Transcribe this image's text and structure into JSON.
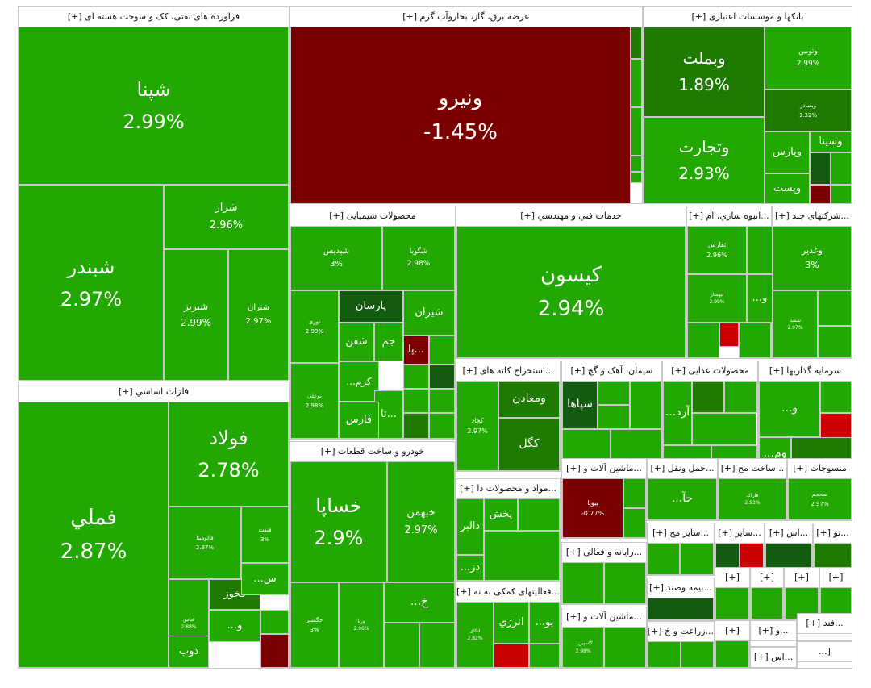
{
  "chart_data": {
    "type": "treemap",
    "title": "",
    "colors": {
      "up": "#22a800",
      "up_dark": "#1e7a00",
      "up_darker": "#135b10",
      "down": "#7a0000",
      "down_bright": "#cc0000",
      "up_light": "#2bb000"
    },
    "sectors": [
      {
        "name": "فراورده های نفتی، کک و سوخت هسته ای [+]",
        "symbols": [
          {
            "name": "شپنا",
            "change": "2.99%"
          },
          {
            "name": "شبندر",
            "change": "2.97%"
          },
          {
            "name": "شراز",
            "change": "2.96%"
          },
          {
            "name": "شبریز",
            "change": "2.99%"
          },
          {
            "name": "شتران",
            "change": "2.97%"
          }
        ]
      },
      {
        "name": "عرضه برق، گاز، بخاروآب گرم [+]",
        "symbols": [
          {
            "name": "ونیرو",
            "change": "-1.45%"
          }
        ]
      },
      {
        "name": "بانکها و موسسات اعتباری [+]",
        "symbols": [
          {
            "name": "وبملت",
            "change": "1.89%"
          },
          {
            "name": "وتوبین",
            "change": "2.99%"
          },
          {
            "name": "وبصادر",
            "change": "1.32%"
          },
          {
            "name": "وتجارت",
            "change": "2.93%"
          },
          {
            "name": "وسینا",
            "change": ""
          },
          {
            "name": "وپارس",
            "change": ""
          },
          {
            "name": "وپست",
            "change": ""
          }
        ]
      },
      {
        "name": "محصولات شیمیایی [+]",
        "symbols": [
          {
            "name": "شپدیس",
            "change": "3%"
          },
          {
            "name": "شگویا",
            "change": "2.98%"
          },
          {
            "name": "پارسان",
            "change": ""
          },
          {
            "name": "شیران",
            "change": ""
          },
          {
            "name": "نوری",
            "change": "2.99%"
          },
          {
            "name": "شفن",
            "change": ""
          },
          {
            "name": "جم",
            "change": ""
          },
          {
            "name": "پا...",
            "change": ""
          },
          {
            "name": "...کرم",
            "change": ""
          },
          {
            "name": "بوعلی",
            "change": "2.98%"
          },
          {
            "name": "تا...",
            "change": ""
          },
          {
            "name": "فارس",
            "change": ""
          }
        ]
      },
      {
        "name": "خدمات فني و مهندسي [+]",
        "symbols": [
          {
            "name": "کیسون",
            "change": "2.94%"
          }
        ]
      },
      {
        "name": "...انبوه سازي، ام [+]",
        "symbols": [
          {
            "name": "ثفارس",
            "change": "2.96%"
          },
          {
            "name": "ثبهساز",
            "change": "2.99%"
          },
          {
            "name": "...و",
            "change": ""
          }
        ]
      },
      {
        "name": "...شرکتهای چند [+]",
        "symbols": [
          {
            "name": "وغدیر",
            "change": "3%"
          },
          {
            "name": "شستا",
            "change": "2.97%"
          }
        ]
      },
      {
        "name": "فلزات اساسي [+]",
        "symbols": [
          {
            "name": "فولاد",
            "change": "2.78%"
          },
          {
            "name": "فملي",
            "change": "2.87%"
          },
          {
            "name": "فالومینا",
            "change": "2.87%"
          },
          {
            "name": "فنفت",
            "change": "3%"
          },
          {
            "name": "فخوز",
            "change": ""
          },
          {
            "name": "فیاس",
            "change": "2.88%"
          },
          {
            "name": "...س",
            "change": ""
          },
          {
            "name": "...و",
            "change": ""
          },
          {
            "name": "ذوب",
            "change": ""
          }
        ]
      },
      {
        "name": "...استخراج کانه های [+]",
        "symbols": [
          {
            "name": "ومعادن",
            "change": ""
          },
          {
            "name": "کچاد",
            "change": "2.97%"
          },
          {
            "name": "کگل",
            "change": ""
          }
        ]
      },
      {
        "name": "سیمان، آهک و گچ [+]",
        "symbols": [
          {
            "name": "سپاها",
            "change": ""
          }
        ]
      },
      {
        "name": "محصولات غذایی [+]",
        "symbols": [
          {
            "name": "...آرد",
            "change": ""
          }
        ]
      },
      {
        "name": "سرمایه گذاریها [+]",
        "symbols": [
          {
            "name": "...و",
            "change": ""
          },
          {
            "name": "...وم",
            "change": ""
          }
        ]
      },
      {
        "name": "خودرو و ساخت قطعات [+]",
        "symbols": [
          {
            "name": "خساپا",
            "change": "2.9%"
          },
          {
            "name": "خبهمن",
            "change": "2.97%"
          },
          {
            "name": "خگستر",
            "change": "3%"
          },
          {
            "name": "ورنا",
            "change": "2.96%"
          },
          {
            "name": "...خ",
            "change": ""
          }
        ]
      },
      {
        "name": "...ماشین آلات و [+]",
        "symbols": [
          {
            "name": "بیوپا",
            "change": "-0.77%"
          }
        ]
      },
      {
        "name": "...حمل ونقل [+]",
        "symbols": [
          {
            "name": "...حآ",
            "change": ""
          }
        ]
      },
      {
        "name": "...ساخت مح [+]",
        "symbols": [
          {
            "name": "فاراک",
            "change": "2.93%"
          }
        ]
      },
      {
        "name": "منسوجات [+]",
        "symbols": [
          {
            "name": "نمحجم",
            "change": "2.97%"
          }
        ]
      },
      {
        "name": "...مواد و محصولات دا [+]",
        "symbols": [
          {
            "name": "دالبر",
            "change": ""
          },
          {
            "name": "پخش",
            "change": ""
          },
          {
            "name": "...دز",
            "change": ""
          }
        ]
      },
      {
        "name": "...رایانه و فعالی [+]",
        "symbols": []
      },
      {
        "name": "...سایر مح [+]",
        "symbols": []
      },
      {
        "name": "...سایر [+]",
        "symbols": []
      },
      {
        "name": "...اس [+]",
        "symbols": []
      },
      {
        "name": "...تو [+]",
        "symbols": []
      },
      {
        "name": "...فعالیتهای کمکی به نه [+]",
        "symbols": [
          {
            "name": "اتکای",
            "change": "2.82%"
          },
          {
            "name": "انرژي",
            "change": ""
          },
          {
            "name": "...بو",
            "change": ""
          }
        ]
      },
      {
        "name": "...ماشین آلات و [+]",
        "symbols": [
          {
            "name": "...کاسپین",
            "change": "2.98%"
          }
        ]
      },
      {
        "name": "...بیمه وصند [+]",
        "symbols": []
      },
      {
        "name": "...زراعت و خ [+]",
        "symbols": []
      },
      {
        "name": "[+]",
        "symbols": []
      },
      {
        "name": "[+]",
        "symbols": []
      },
      {
        "name": "[+]",
        "symbols": []
      },
      {
        "name": "[+]",
        "symbols": []
      },
      {
        "name": "[+]",
        "symbols": []
      },
      {
        "name": "[+]",
        "symbols": []
      },
      {
        "name": "...و [+]",
        "symbols": []
      },
      {
        "name": "...اس [+]",
        "symbols": []
      },
      {
        "name": "...فند [+]",
        "symbols": []
      },
      {
        "name": "[...",
        "symbols": []
      },
      {
        "name": "[...",
        "symbols": []
      }
    ]
  }
}
